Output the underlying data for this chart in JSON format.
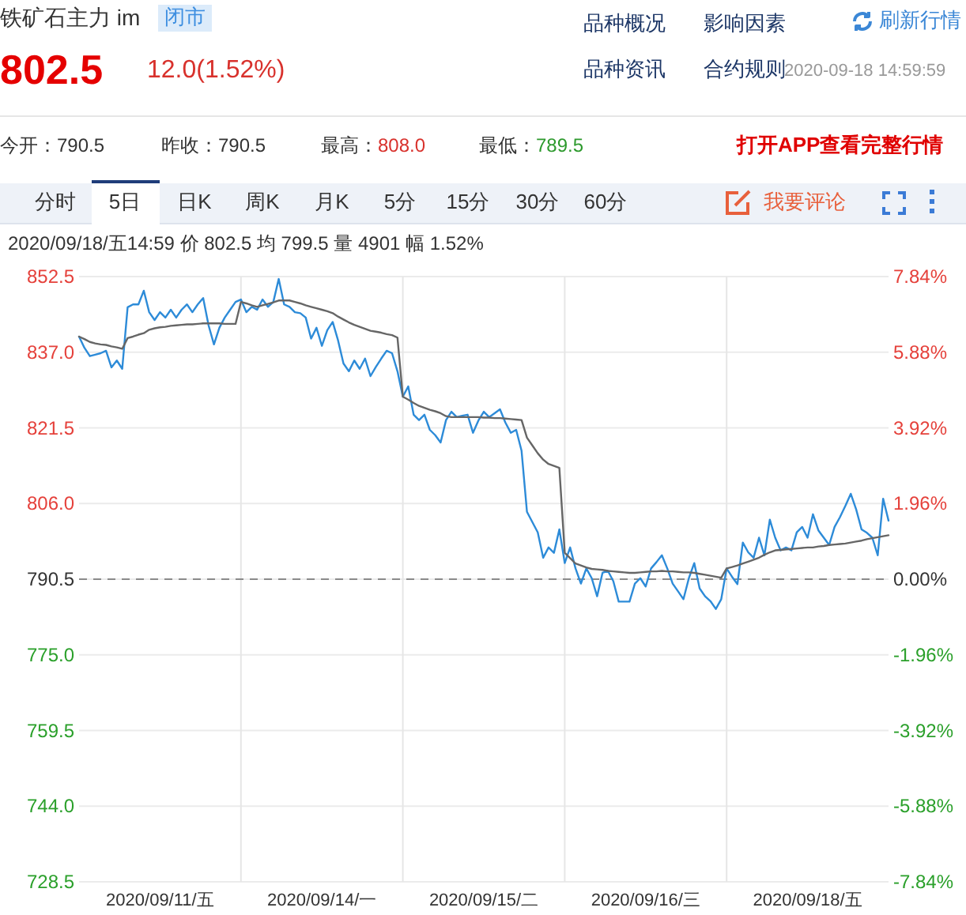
{
  "chart_data": {
    "type": "line",
    "title": "铁矿石主力 im",
    "annotations": [
      "闭市",
      "802.5",
      "12.0(1.52%)",
      "品种概况",
      "影响因素",
      "刷新行情",
      "品种资讯",
      "合约规则",
      "2020-09-18 14:59:59",
      "今开：790.5",
      "昨收：790.5",
      "最高：",
      "808.0",
      "最低：",
      "789.5",
      "打开APP查看完整行情",
      "分时",
      "5日",
      "日K",
      "周K",
      "月K",
      "5分",
      "15分",
      "30分",
      "60分",
      "我要评论",
      "2020/09/18/五14:59  价 802.5  均 799.5  量 4901  幅 1.52%"
    ],
    "categories": [
      null,
      null,
      null,
      null,
      null,
      null,
      null,
      null,
      null,
      null,
      null,
      null,
      null,
      null,
      null,
      "2020/09/11/五",
      null,
      null,
      null,
      null,
      null,
      null,
      null,
      null,
      null,
      null,
      null,
      null,
      null,
      null,
      null,
      null,
      null,
      null,
      null,
      null,
      null,
      null,
      null,
      null,
      null,
      null,
      null,
      null,
      null,
      "2020/09/14/一",
      null,
      null,
      null,
      null,
      null,
      null,
      null,
      null,
      null,
      null,
      null,
      null,
      null,
      null,
      null,
      null,
      null,
      null,
      null,
      null,
      null,
      null,
      null,
      null,
      null,
      null,
      null,
      null,
      null,
      "2020/09/15/二",
      null,
      null,
      null,
      null,
      null,
      null,
      null,
      null,
      null,
      null,
      null,
      null,
      null,
      null,
      null,
      null,
      null,
      null,
      null,
      null,
      null,
      null,
      null,
      null,
      null,
      null,
      null,
      null,
      null,
      "2020/09/16/三",
      null,
      null,
      null,
      null,
      null,
      null,
      null,
      null,
      null,
      null,
      null,
      null,
      null,
      null,
      null,
      null,
      null,
      null,
      null,
      null,
      null,
      null,
      null,
      null,
      null,
      null,
      null,
      null,
      null,
      "2020/09/18/五",
      null,
      null,
      null,
      null,
      null,
      null,
      null,
      null,
      null,
      null,
      null,
      null,
      null,
      null,
      null
    ],
    "series": [
      {
        "color": "#2d8bd8",
        "values": [
          840.2,
          837.9,
          836.2,
          836.5,
          836.8,
          837.3,
          833.9,
          835.3,
          833.6,
          846.2,
          846.8,
          846.8,
          849.6,
          845.2,
          843.6,
          845.2,
          844.1,
          845.7,
          844.1,
          845.7,
          846.8,
          845.2,
          846.8,
          848.1,
          842.5,
          838.6,
          842.0,
          844.1,
          845.7,
          847.3,
          847.8,
          845.2,
          846.3,
          845.7,
          847.8,
          846.3,
          847.3,
          852.0,
          846.8,
          846.3,
          845.2,
          845.0,
          844.1,
          839.8,
          842.0,
          838.3,
          841.5,
          843.2,
          839.4,
          834.7,
          833.1,
          835.3,
          833.6,
          835.7,
          832.1,
          834.0,
          835.7,
          837.3,
          836.8,
          833.1,
          827.9,
          830.0,
          824.2,
          823.1,
          824.2,
          821.1,
          820.0,
          818.5,
          823.1,
          824.8,
          823.7,
          824.0,
          824.2,
          820.5,
          823.0,
          824.8,
          823.7,
          824.5,
          825.3,
          822.6,
          820.5,
          821.1,
          816.8,
          804.3,
          802.2,
          800.1,
          794.9,
          797.0,
          795.9,
          800.7,
          793.8,
          797.0,
          792.7,
          789.6,
          792.7,
          790.7,
          787.0,
          791.8,
          792.2,
          790.1,
          785.9,
          785.9,
          785.9,
          789.6,
          790.7,
          789.0,
          792.7,
          794.0,
          795.4,
          792.7,
          789.6,
          788.0,
          786.4,
          790.7,
          793.8,
          788.6,
          787.0,
          786.0,
          784.4,
          786.4,
          792.7,
          791.0,
          789.5,
          798.0,
          796.0,
          794.9,
          799.0,
          795.4,
          802.7,
          799.0,
          796.4,
          797.0,
          796.4,
          800.1,
          801.2,
          799.0,
          803.8,
          800.5,
          799.0,
          797.5,
          801.2,
          803.2,
          805.5,
          808.0,
          804.8,
          800.7,
          800.0,
          799.0,
          795.4,
          807.0,
          802.5
        ]
      },
      {
        "color": "#666666",
        "values": [
          840.2,
          839.7,
          839.1,
          838.8,
          838.6,
          838.5,
          838.2,
          838.0,
          837.7,
          839.9,
          840.2,
          840.6,
          840.9,
          841.6,
          841.9,
          842.1,
          842.2,
          842.4,
          842.5,
          842.6,
          842.7,
          842.7,
          842.8,
          842.9,
          842.9,
          842.9,
          842.9,
          842.8,
          842.8,
          842.8,
          847.3,
          847.0,
          846.6,
          846.3,
          846.6,
          846.9,
          847.2,
          847.6,
          847.6,
          847.6,
          847.3,
          847.0,
          846.6,
          846.3,
          846.0,
          845.7,
          845.4,
          845.0,
          844.3,
          843.7,
          843.1,
          842.6,
          842.2,
          841.8,
          841.4,
          841.2,
          841.0,
          840.7,
          840.5,
          840.0,
          827.9,
          827.3,
          826.6,
          826.0,
          825.6,
          825.2,
          824.9,
          824.5,
          823.9,
          823.7,
          823.7,
          823.7,
          823.7,
          823.7,
          823.7,
          823.6,
          823.6,
          823.5,
          823.5,
          823.4,
          823.3,
          823.2,
          823.1,
          819.5,
          817.9,
          816.3,
          815.0,
          814.1,
          813.7,
          813.3,
          795.9,
          794.8,
          793.7,
          793.3,
          792.9,
          792.6,
          792.5,
          792.4,
          792.2,
          792.1,
          792.0,
          791.9,
          791.8,
          791.8,
          791.9,
          792.0,
          792.1,
          792.1,
          792.2,
          792.1,
          792.1,
          792.0,
          791.9,
          791.9,
          791.8,
          791.6,
          791.4,
          791.2,
          791.0,
          790.8,
          792.7,
          793.0,
          793.3,
          793.7,
          794.1,
          794.5,
          794.9,
          795.5,
          796.0,
          796.4,
          796.5,
          796.6,
          796.7,
          796.8,
          796.9,
          797.0,
          797.0,
          797.2,
          797.3,
          797.5,
          797.6,
          797.7,
          797.8,
          798.0,
          798.2,
          798.4,
          798.7,
          798.9,
          799.1,
          799.3,
          799.5
        ]
      }
    ],
    "ylim": [
      728.5,
      852.5
    ],
    "yticks": [
      852.5,
      {
        "value": 837,
        "label": "837.0"
      },
      821.5,
      {
        "value": 806,
        "label": "806.0"
      },
      790.5,
      {
        "value": 775,
        "label": "775.0"
      },
      759.5,
      {
        "value": 744,
        "label": "744.0"
      },
      728.5
    ],
    "y2lim": [
      -7.84,
      7.84
    ],
    "y2ticks": [
      {
        "value": 7.84,
        "label": "7.84%"
      },
      {
        "value": 5.88,
        "label": "5.88%"
      },
      {
        "value": 3.92,
        "label": "3.92%"
      },
      {
        "value": 1.96,
        "label": "1.96%"
      },
      {
        "value": 0,
        "label": "0.00%"
      },
      {
        "value": -1.96,
        "label": "-1.96%"
      },
      {
        "value": -3.92,
        "label": "-3.92%"
      },
      {
        "value": -5.88,
        "label": "-5.88%"
      },
      {
        "value": -7.84,
        "label": "-7.84%"
      }
    ],
    "ref_lines": [
      {
        "axis": "y",
        "value": 790.5,
        "line_style": "dashed",
        "color": "#8a8a8a"
      }
    ],
    "grid": true
  }
}
